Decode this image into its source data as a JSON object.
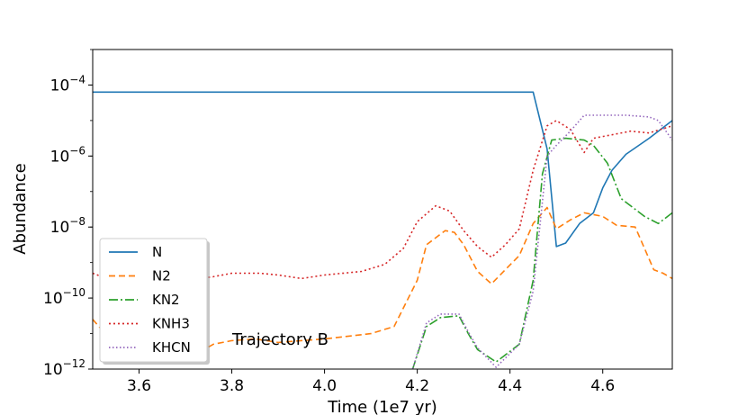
{
  "chart_data": {
    "type": "line",
    "title": "",
    "xlabel": "Time (1e7 yr)",
    "ylabel": "Abundance",
    "xlim": [
      3.5,
      4.75
    ],
    "ylim_log10": [
      -12,
      -3
    ],
    "yscale": "log",
    "grid": false,
    "legend_position": "lower-left",
    "annotation": "Trajectory B",
    "x_ticks": [
      {
        "value": 3.6,
        "label": "3.6"
      },
      {
        "value": 3.8,
        "label": "3.8"
      },
      {
        "value": 4.0,
        "label": "4.0"
      },
      {
        "value": 4.2,
        "label": "4.2"
      },
      {
        "value": 4.4,
        "label": "4.4"
      },
      {
        "value": 4.6,
        "label": "4.6"
      }
    ],
    "y_ticks": [
      {
        "exp": -4,
        "label": "10",
        "sup": "−4"
      },
      {
        "exp": -6,
        "label": "10",
        "sup": "−6"
      },
      {
        "exp": -8,
        "label": "10",
        "sup": "−8"
      },
      {
        "exp": -10,
        "label": "10",
        "sup": "−10"
      },
      {
        "exp": -12,
        "label": "10",
        "sup": "−12"
      }
    ],
    "series": [
      {
        "name": "N",
        "color": "#1f77b4",
        "dash": "",
        "log10_values": [
          [
            3.5,
            -4.2
          ],
          [
            4.45,
            -4.2
          ],
          [
            4.48,
            -5.8
          ],
          [
            4.5,
            -8.55
          ],
          [
            4.52,
            -8.45
          ],
          [
            4.55,
            -7.9
          ],
          [
            4.58,
            -7.6
          ],
          [
            4.6,
            -6.9
          ],
          [
            4.62,
            -6.4
          ],
          [
            4.65,
            -5.95
          ],
          [
            4.7,
            -5.5
          ],
          [
            4.75,
            -5.0
          ]
        ]
      },
      {
        "name": "N2",
        "color": "#ff7f0e",
        "dash": "7,4",
        "log10_values": [
          [
            3.5,
            -10.6
          ],
          [
            3.53,
            -11.05
          ],
          [
            3.56,
            -11.1
          ],
          [
            3.6,
            -11.35
          ],
          [
            3.64,
            -11.55
          ],
          [
            3.68,
            -11.6
          ],
          [
            3.72,
            -11.6
          ],
          [
            3.76,
            -11.3
          ],
          [
            3.8,
            -11.2
          ],
          [
            3.85,
            -11.15
          ],
          [
            3.9,
            -11.25
          ],
          [
            4.0,
            -11.15
          ],
          [
            4.1,
            -11.0
          ],
          [
            4.15,
            -10.8
          ],
          [
            4.2,
            -9.5
          ],
          [
            4.22,
            -8.5
          ],
          [
            4.26,
            -8.1
          ],
          [
            4.28,
            -8.15
          ],
          [
            4.3,
            -8.5
          ],
          [
            4.33,
            -9.25
          ],
          [
            4.36,
            -9.6
          ],
          [
            4.39,
            -9.2
          ],
          [
            4.42,
            -8.8
          ],
          [
            4.45,
            -7.9
          ],
          [
            4.48,
            -7.45
          ],
          [
            4.5,
            -8.05
          ],
          [
            4.53,
            -7.8
          ],
          [
            4.56,
            -7.6
          ],
          [
            4.6,
            -7.7
          ],
          [
            4.63,
            -7.95
          ],
          [
            4.67,
            -8.0
          ],
          [
            4.71,
            -9.2
          ],
          [
            4.73,
            -9.3
          ],
          [
            4.75,
            -9.45
          ]
        ]
      },
      {
        "name": "KN2",
        "color": "#2ca02c",
        "dash": "10,3,2,3",
        "log10_values": [
          [
            4.19,
            -12
          ],
          [
            4.22,
            -10.8
          ],
          [
            4.25,
            -10.55
          ],
          [
            4.29,
            -10.5
          ],
          [
            4.31,
            -11.0
          ],
          [
            4.33,
            -11.45
          ],
          [
            4.37,
            -11.8
          ],
          [
            4.42,
            -11.3
          ],
          [
            4.45,
            -9.5
          ],
          [
            4.47,
            -6.5
          ],
          [
            4.49,
            -5.55
          ],
          [
            4.52,
            -5.5
          ],
          [
            4.56,
            -5.55
          ],
          [
            4.58,
            -5.7
          ],
          [
            4.61,
            -6.2
          ],
          [
            4.64,
            -7.2
          ],
          [
            4.67,
            -7.5
          ],
          [
            4.69,
            -7.7
          ],
          [
            4.72,
            -7.9
          ],
          [
            4.75,
            -7.6
          ]
        ]
      },
      {
        "name": "KNH3",
        "color": "#d62728",
        "dash": "2,3",
        "log10_values": [
          [
            3.5,
            -9.3
          ],
          [
            3.53,
            -9.45
          ],
          [
            3.56,
            -9.5
          ],
          [
            3.6,
            -9.55
          ],
          [
            3.65,
            -9.55
          ],
          [
            3.7,
            -9.5
          ],
          [
            3.76,
            -9.4
          ],
          [
            3.8,
            -9.3
          ],
          [
            3.86,
            -9.3
          ],
          [
            3.9,
            -9.35
          ],
          [
            3.95,
            -9.45
          ],
          [
            4.0,
            -9.35
          ],
          [
            4.08,
            -9.25
          ],
          [
            4.13,
            -9.05
          ],
          [
            4.17,
            -8.6
          ],
          [
            4.2,
            -7.85
          ],
          [
            4.24,
            -7.4
          ],
          [
            4.27,
            -7.55
          ],
          [
            4.3,
            -8.1
          ],
          [
            4.33,
            -8.55
          ],
          [
            4.36,
            -8.85
          ],
          [
            4.39,
            -8.5
          ],
          [
            4.42,
            -8.05
          ],
          [
            4.45,
            -6.4
          ],
          [
            4.48,
            -5.15
          ],
          [
            4.5,
            -5.0
          ],
          [
            4.53,
            -5.25
          ],
          [
            4.56,
            -5.9
          ],
          [
            4.58,
            -5.5
          ],
          [
            4.62,
            -5.4
          ],
          [
            4.66,
            -5.3
          ],
          [
            4.7,
            -5.35
          ],
          [
            4.75,
            -5.15
          ]
        ]
      },
      {
        "name": "KHCN",
        "color": "#9467bd",
        "dash": "1.5,2.5",
        "log10_values": [
          [
            4.19,
            -12
          ],
          [
            4.22,
            -10.7
          ],
          [
            4.25,
            -10.45
          ],
          [
            4.29,
            -10.45
          ],
          [
            4.31,
            -10.95
          ],
          [
            4.33,
            -11.4
          ],
          [
            4.37,
            -11.95
          ],
          [
            4.42,
            -11.3
          ],
          [
            4.45,
            -9.8
          ],
          [
            4.48,
            -6.0
          ],
          [
            4.5,
            -5.7
          ],
          [
            4.53,
            -5.3
          ],
          [
            4.56,
            -4.85
          ],
          [
            4.6,
            -4.85
          ],
          [
            4.65,
            -4.85
          ],
          [
            4.7,
            -4.9
          ],
          [
            4.72,
            -5.0
          ],
          [
            4.75,
            -5.55
          ]
        ]
      }
    ]
  }
}
